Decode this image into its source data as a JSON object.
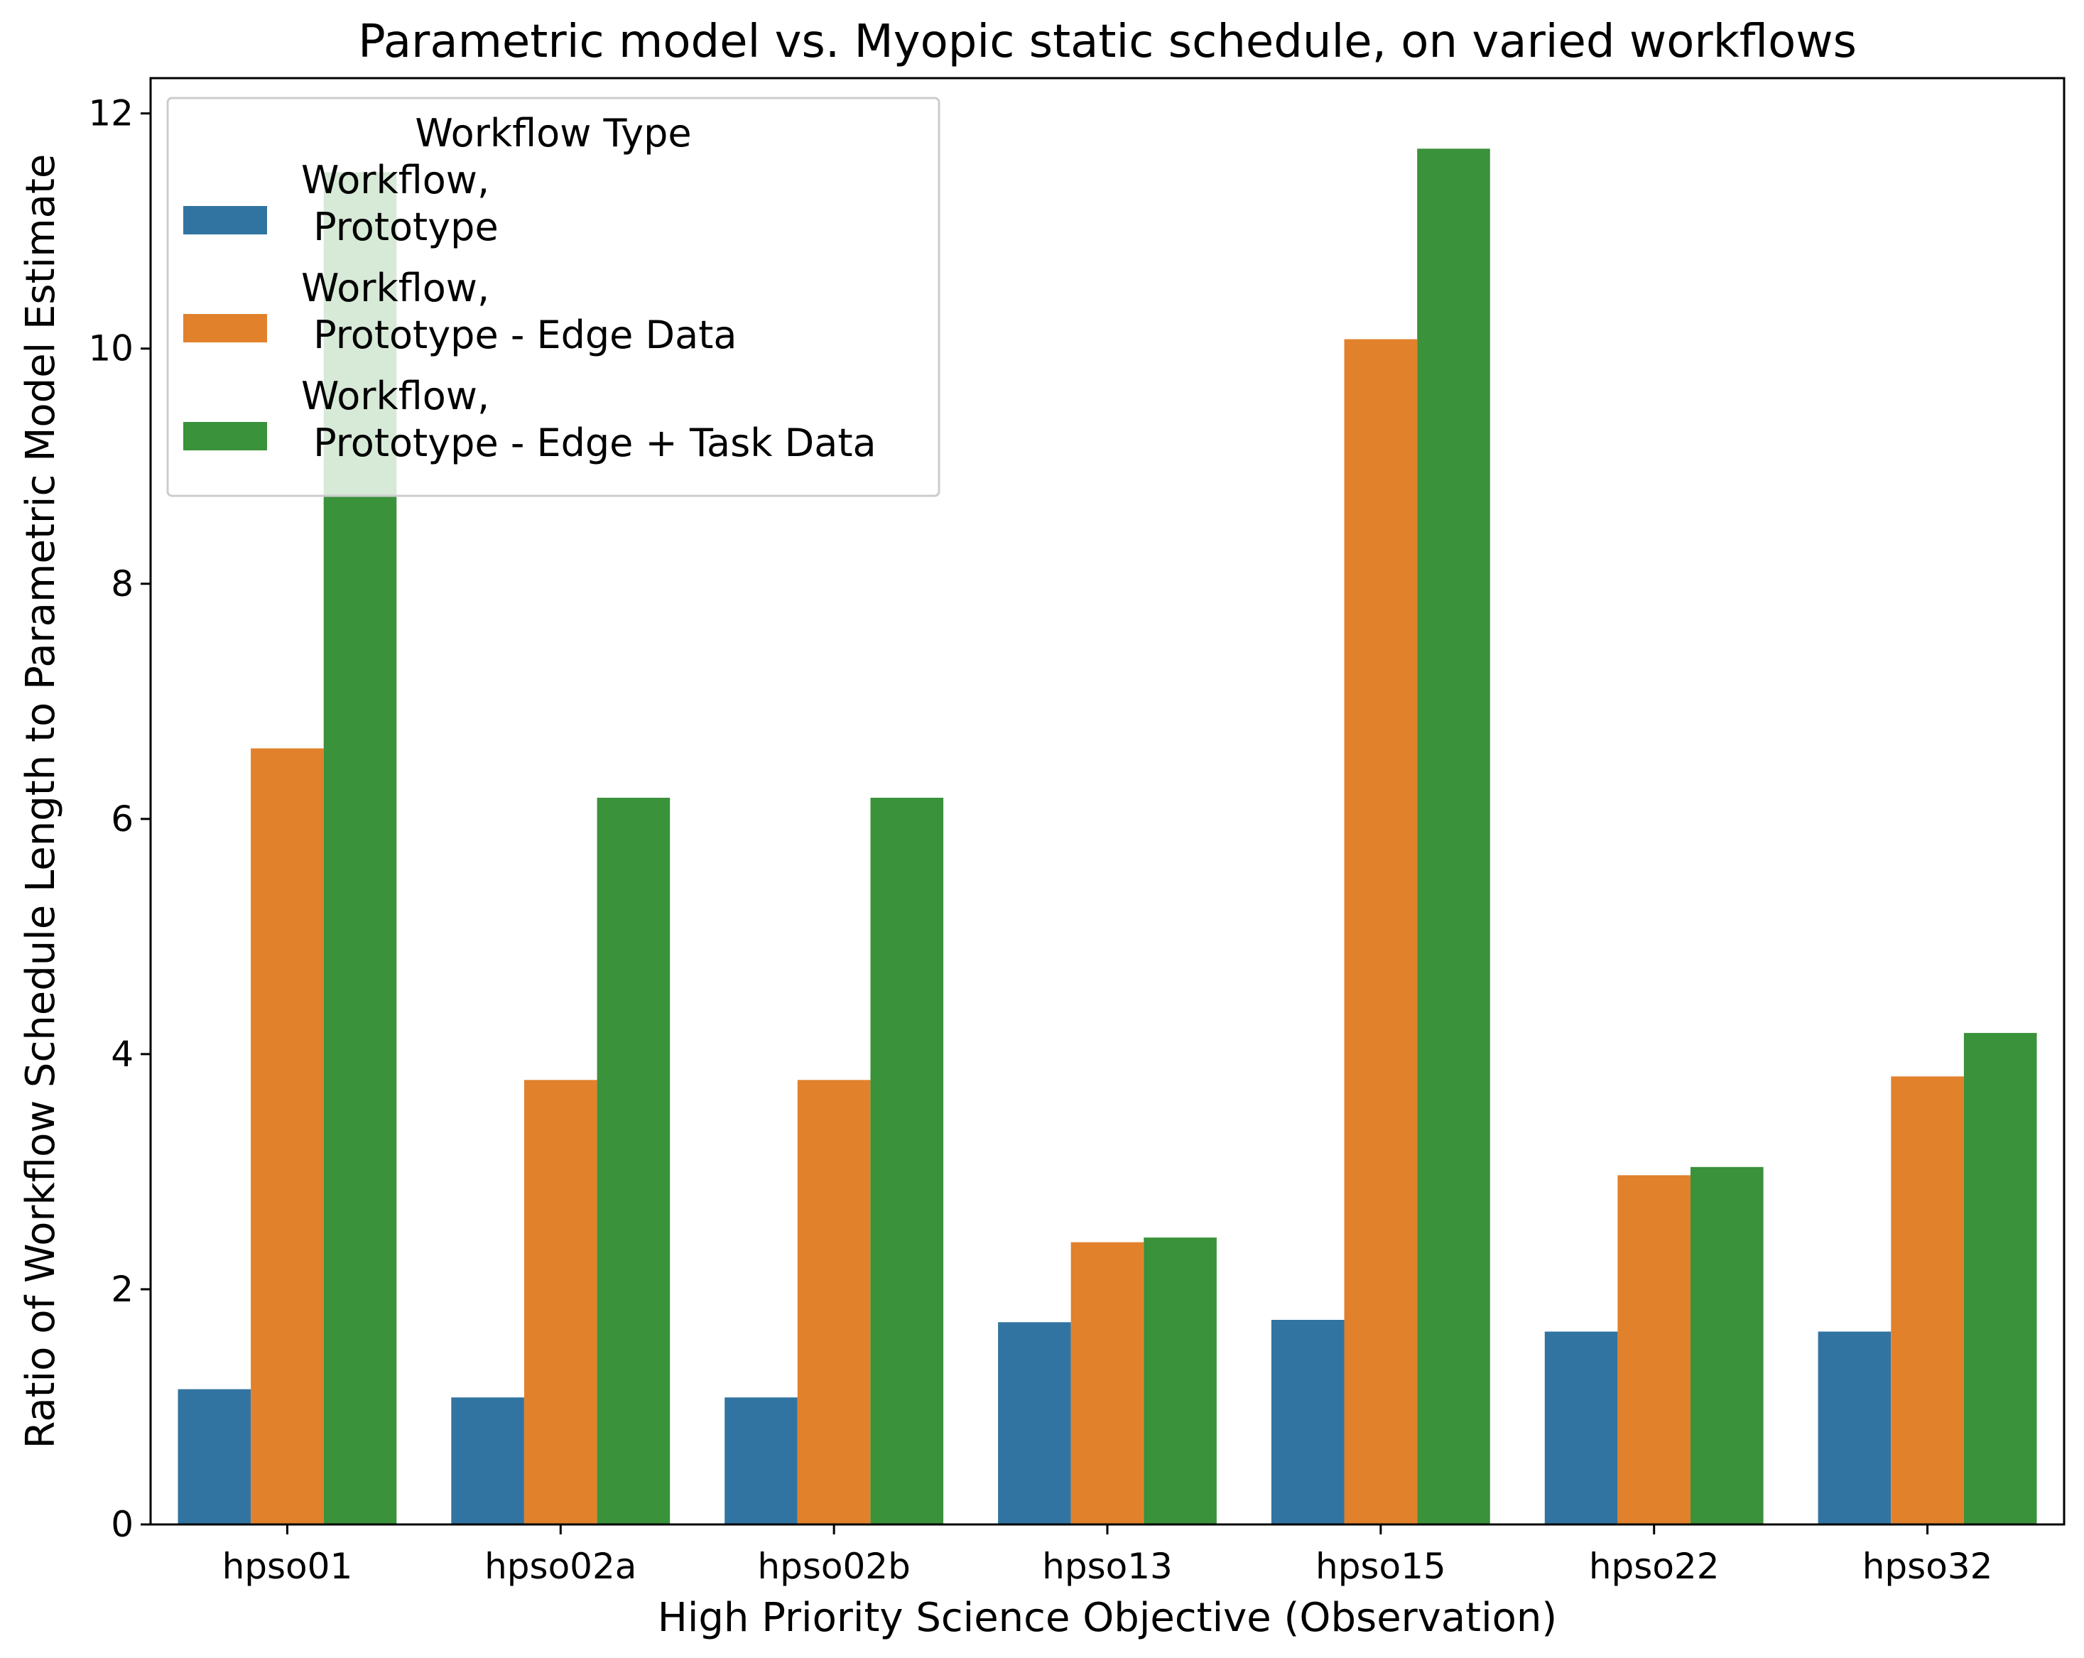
{
  "chart_data": {
    "type": "bar",
    "title": "Parametric model vs. Myopic static schedule, on varied workflows",
    "xlabel": "High Priority Science Objective (Observation)",
    "ylabel": "Ratio of Workflow Schedule Length to Parametric Model Estimate",
    "categories": [
      "hpso01",
      "hpso02a",
      "hpso02b",
      "hpso13",
      "hpso15",
      "hpso22",
      "hpso32"
    ],
    "ylim": [
      0,
      12.3
    ],
    "yticks": [
      0,
      2,
      4,
      6,
      8,
      10,
      12
    ],
    "grid": false,
    "legend": {
      "title": "Workflow Type",
      "position": "top-left"
    },
    "series": [
      {
        "name_lines": [
          "Workflow,",
          " Prototype"
        ],
        "color": "#3274a1",
        "values": [
          1.15,
          1.08,
          1.08,
          1.72,
          1.74,
          1.64,
          1.64
        ]
      },
      {
        "name_lines": [
          "Workflow,",
          " Prototype - Edge Data"
        ],
        "color": "#e1812c",
        "values": [
          6.6,
          3.78,
          3.78,
          2.4,
          10.08,
          2.97,
          3.81
        ]
      },
      {
        "name_lines": [
          "Workflow,",
          " Prototype - Edge + Task Data"
        ],
        "color": "#3a923a",
        "values": [
          11.5,
          6.18,
          6.18,
          2.44,
          11.7,
          3.04,
          4.18
        ]
      }
    ]
  }
}
